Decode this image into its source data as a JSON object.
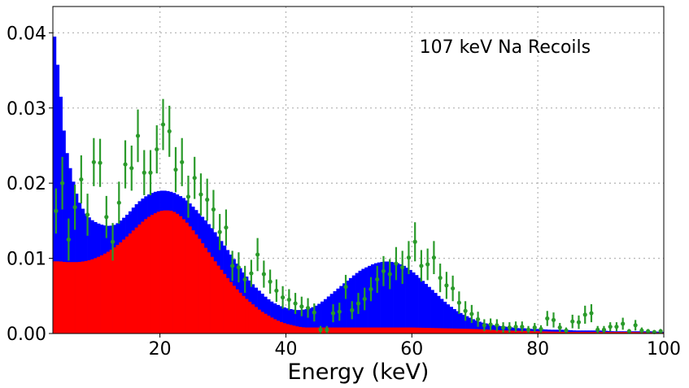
{
  "chart_data": {
    "type": "histogram",
    "title": "",
    "annotation": "107 keV Na Recoils",
    "xlabel": "Energy (keV)",
    "ylabel": "",
    "xlim": [
      3,
      100
    ],
    "ylim": [
      0,
      0.0435
    ],
    "grid": true,
    "x_ticks": [
      20,
      40,
      60,
      80,
      100
    ],
    "x_tick_labels": [
      "20",
      "40",
      "60",
      "80",
      "100"
    ],
    "y_ticks": [
      0,
      0.01,
      0.02,
      0.03,
      0.04
    ],
    "y_tick_labels": [
      "0.00",
      "0.01",
      "0.02",
      "0.03",
      "0.04"
    ],
    "colors": {
      "total": "#0000ff",
      "component": "#ff0000",
      "data": "#2a9a2a",
      "grid": "#b8b8b8"
    },
    "bin_width": 0.5,
    "histogram_series": [
      {
        "key": "total",
        "x": [
          3,
          3.5,
          4,
          4.5,
          5,
          6,
          7,
          8,
          9,
          10,
          11,
          12,
          13,
          14,
          15,
          16,
          17,
          18,
          19,
          20,
          21,
          22,
          23,
          24,
          25,
          26,
          27,
          28,
          29,
          30,
          31,
          32,
          33,
          34,
          35,
          36,
          37,
          38,
          39,
          40,
          41,
          42,
          43,
          44,
          45,
          46,
          47,
          48,
          49,
          50,
          51,
          52,
          53,
          54,
          55,
          56,
          57,
          58,
          59,
          60,
          61,
          62,
          63,
          64,
          65,
          66,
          67,
          68,
          69,
          70,
          71,
          72,
          73,
          74,
          75,
          76,
          77,
          78,
          79,
          80,
          82,
          84,
          86,
          88,
          90,
          92,
          94,
          96,
          98,
          100
        ],
        "y": [
          0.0415,
          0.0375,
          0.034,
          0.029,
          0.025,
          0.021,
          0.0178,
          0.0162,
          0.0152,
          0.0147,
          0.0144,
          0.0143,
          0.0145,
          0.0152,
          0.016,
          0.017,
          0.0178,
          0.0184,
          0.0188,
          0.019,
          0.019,
          0.0188,
          0.0184,
          0.0179,
          0.0171,
          0.0162,
          0.0153,
          0.0143,
          0.0132,
          0.012,
          0.0108,
          0.0096,
          0.0084,
          0.0073,
          0.0063,
          0.0055,
          0.0047,
          0.0041,
          0.0037,
          0.0034,
          0.0032,
          0.0031,
          0.0032,
          0.0034,
          0.0038,
          0.0044,
          0.0051,
          0.0058,
          0.0065,
          0.0072,
          0.0079,
          0.0085,
          0.0089,
          0.0093,
          0.0095,
          0.0096,
          0.0095,
          0.0093,
          0.0089,
          0.0083,
          0.0076,
          0.0068,
          0.006,
          0.0052,
          0.0044,
          0.0037,
          0.0031,
          0.0026,
          0.0022,
          0.0018,
          0.0015,
          0.0013,
          0.0011,
          0.001,
          0.0009,
          0.0008,
          0.0007,
          0.0007,
          0.0006,
          0.0006,
          0.0005,
          0.0005,
          0.0004,
          0.0004,
          0.0004,
          0.0003,
          0.0003,
          0.0003,
          0.0003,
          0.0002
        ]
      },
      {
        "key": "component",
        "x": [
          3,
          4,
          5,
          6,
          7,
          8,
          9,
          10,
          11,
          12,
          13,
          14,
          15,
          16,
          17,
          18,
          19,
          20,
          21,
          22,
          23,
          24,
          25,
          26,
          27,
          28,
          29,
          30,
          31,
          32,
          33,
          34,
          35,
          36,
          37,
          38,
          39,
          40,
          41,
          42,
          43,
          44,
          45,
          46,
          48,
          50,
          55,
          60,
          65,
          70,
          75,
          80,
          85,
          90,
          95,
          100
        ],
        "y": [
          0.0096,
          0.0096,
          0.0095,
          0.0095,
          0.0095,
          0.0096,
          0.0098,
          0.0101,
          0.0105,
          0.011,
          0.0116,
          0.0123,
          0.0131,
          0.0139,
          0.0147,
          0.0154,
          0.0159,
          0.0163,
          0.0164,
          0.0163,
          0.0158,
          0.015,
          0.014,
          0.0129,
          0.0117,
          0.0105,
          0.0093,
          0.0082,
          0.0071,
          0.0061,
          0.0052,
          0.0044,
          0.0037,
          0.003,
          0.0025,
          0.002,
          0.0016,
          0.0013,
          0.0011,
          0.0009,
          0.0008,
          0.0008,
          0.0008,
          0.0008,
          0.0008,
          0.0008,
          0.0008,
          0.0008,
          0.0007,
          0.0006,
          0.0004,
          0.0003,
          0.0002,
          0.0002,
          0.0002,
          0.0001
        ]
      }
    ],
    "data_points": {
      "x": [
        3.5,
        4.5,
        5.5,
        6.5,
        7.5,
        8.5,
        9.5,
        10.5,
        11.5,
        12.5,
        13.5,
        14.5,
        15.5,
        16.5,
        17.5,
        18.5,
        19.5,
        20.5,
        21.5,
        22.5,
        23.5,
        24.5,
        25.5,
        26.5,
        27.5,
        28.5,
        29.5,
        30.5,
        31.5,
        32.5,
        33.5,
        34.5,
        35.5,
        36.5,
        37.5,
        38.5,
        39.5,
        40.5,
        41.5,
        42.5,
        43.5,
        44.5,
        45.5,
        46.5,
        47.5,
        48.5,
        49.5,
        50.5,
        51.5,
        52.5,
        53.5,
        54.5,
        55.5,
        56.5,
        57.5,
        58.5,
        59.5,
        60.5,
        61.5,
        62.5,
        63.5,
        64.5,
        65.5,
        66.5,
        67.5,
        68.5,
        69.5,
        70.5,
        71.5,
        72.5,
        73.5,
        74.5,
        75.5,
        76.5,
        77.5,
        78.5,
        79.5,
        80.5,
        81.5,
        82.5,
        83.5,
        84.5,
        85.5,
        86.5,
        87.5,
        88.5,
        89.5,
        90.5,
        91.5,
        92.5,
        93.5,
        94.5,
        95.5,
        96.5,
        97.5,
        98.5,
        99.5
      ],
      "y": [
        0.0163,
        0.02,
        0.0125,
        0.0168,
        0.0205,
        0.0158,
        0.0228,
        0.0227,
        0.0155,
        0.0122,
        0.0174,
        0.0225,
        0.022,
        0.0263,
        0.0214,
        0.0214,
        0.0245,
        0.0278,
        0.0269,
        0.0218,
        0.0228,
        0.0182,
        0.0207,
        0.0185,
        0.0178,
        0.0165,
        0.0135,
        0.0141,
        0.009,
        0.0088,
        0.0072,
        0.008,
        0.0105,
        0.0079,
        0.0069,
        0.0057,
        0.0048,
        0.0045,
        0.004,
        0.0036,
        0.0034,
        0.0028,
        0.0005,
        0.0005,
        0.0027,
        0.0029,
        0.0062,
        0.0031,
        0.004,
        0.0046,
        0.0059,
        0.0072,
        0.0083,
        0.0079,
        0.0093,
        0.0088,
        0.0101,
        0.0122,
        0.009,
        0.0092,
        0.0101,
        0.0074,
        0.0064,
        0.006,
        0.0041,
        0.003,
        0.0026,
        0.0019,
        0.0011,
        0.0012,
        0.0011,
        0.0008,
        0.0008,
        0.0009,
        0.0009,
        0.0005,
        0.0008,
        0.0006,
        0.002,
        0.0018,
        0.0008,
        0.0004,
        0.0016,
        0.0015,
        0.0025,
        0.0027,
        0.0005,
        0.0005,
        0.0009,
        0.0009,
        0.0013,
        0.0003,
        0.0011,
        0.0004,
        0.0003,
        0.0002,
        0.0003
      ],
      "err": [
        0.003,
        0.0035,
        0.0028,
        0.003,
        0.0032,
        0.0028,
        0.0032,
        0.0032,
        0.0028,
        0.0025,
        0.0028,
        0.0032,
        0.003,
        0.0035,
        0.003,
        0.003,
        0.0032,
        0.0034,
        0.0034,
        0.003,
        0.0032,
        0.0028,
        0.0028,
        0.0028,
        0.0028,
        0.0026,
        0.0024,
        0.0024,
        0.002,
        0.002,
        0.0018,
        0.0018,
        0.0022,
        0.0018,
        0.0016,
        0.0015,
        0.0015,
        0.0014,
        0.0014,
        0.0013,
        0.0013,
        0.0012,
        0.0005,
        0.0005,
        0.0012,
        0.0012,
        0.0016,
        0.0012,
        0.0014,
        0.0015,
        0.0016,
        0.0018,
        0.002,
        0.002,
        0.0022,
        0.0022,
        0.0022,
        0.0026,
        0.0021,
        0.0021,
        0.0022,
        0.0019,
        0.0018,
        0.0017,
        0.0015,
        0.0013,
        0.0012,
        0.001,
        0.0008,
        0.0008,
        0.0008,
        0.0007,
        0.0007,
        0.0007,
        0.0007,
        0.0005,
        0.0006,
        0.0005,
        0.001,
        0.001,
        0.0006,
        0.0004,
        0.0009,
        0.0009,
        0.0012,
        0.0012,
        0.0005,
        0.0005,
        0.0006,
        0.0006,
        0.0008,
        0.0003,
        0.0007,
        0.0004,
        0.0003,
        0.0002,
        0.0003
      ]
    }
  }
}
